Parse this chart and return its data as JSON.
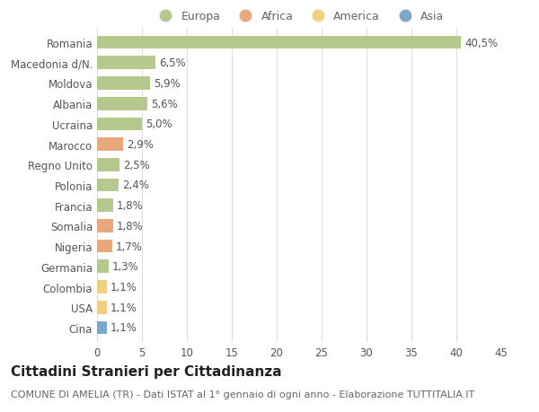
{
  "categories": [
    "Romania",
    "Macedonia d/N.",
    "Moldova",
    "Albania",
    "Ucraina",
    "Marocco",
    "Regno Unito",
    "Polonia",
    "Francia",
    "Somalia",
    "Nigeria",
    "Germania",
    "Colombia",
    "USA",
    "Cina"
  ],
  "values": [
    40.5,
    6.5,
    5.9,
    5.6,
    5.0,
    2.9,
    2.5,
    2.4,
    1.8,
    1.8,
    1.7,
    1.3,
    1.1,
    1.1,
    1.1
  ],
  "labels": [
    "40,5%",
    "6,5%",
    "5,9%",
    "5,6%",
    "5,0%",
    "2,9%",
    "2,5%",
    "2,4%",
    "1,8%",
    "1,8%",
    "1,7%",
    "1,3%",
    "1,1%",
    "1,1%",
    "1,1%"
  ],
  "continents": [
    "Europa",
    "Europa",
    "Europa",
    "Europa",
    "Europa",
    "Africa",
    "Europa",
    "Europa",
    "Europa",
    "Africa",
    "Africa",
    "Europa",
    "America",
    "America",
    "Asia"
  ],
  "colors": {
    "Europa": "#b5c98e",
    "Africa": "#e8a87c",
    "America": "#f0d080",
    "Asia": "#7ba7c9"
  },
  "legend_labels": [
    "Europa",
    "Africa",
    "America",
    "Asia"
  ],
  "legend_colors": [
    "#b5c98e",
    "#e8a87c",
    "#f0d080",
    "#7ba7c9"
  ],
  "title": "Cittadini Stranieri per Cittadinanza",
  "subtitle": "COMUNE DI AMELIA (TR) - Dati ISTAT al 1° gennaio di ogni anno - Elaborazione TUTTITALIA.IT",
  "xlim": [
    0,
    45
  ],
  "xticks": [
    0,
    5,
    10,
    15,
    20,
    25,
    30,
    35,
    40,
    45
  ],
  "bg_color": "#ffffff",
  "grid_color": "#dddddd",
  "bar_height": 0.65,
  "label_fontsize": 8.5,
  "tick_fontsize": 8.5,
  "title_fontsize": 11,
  "subtitle_fontsize": 8
}
